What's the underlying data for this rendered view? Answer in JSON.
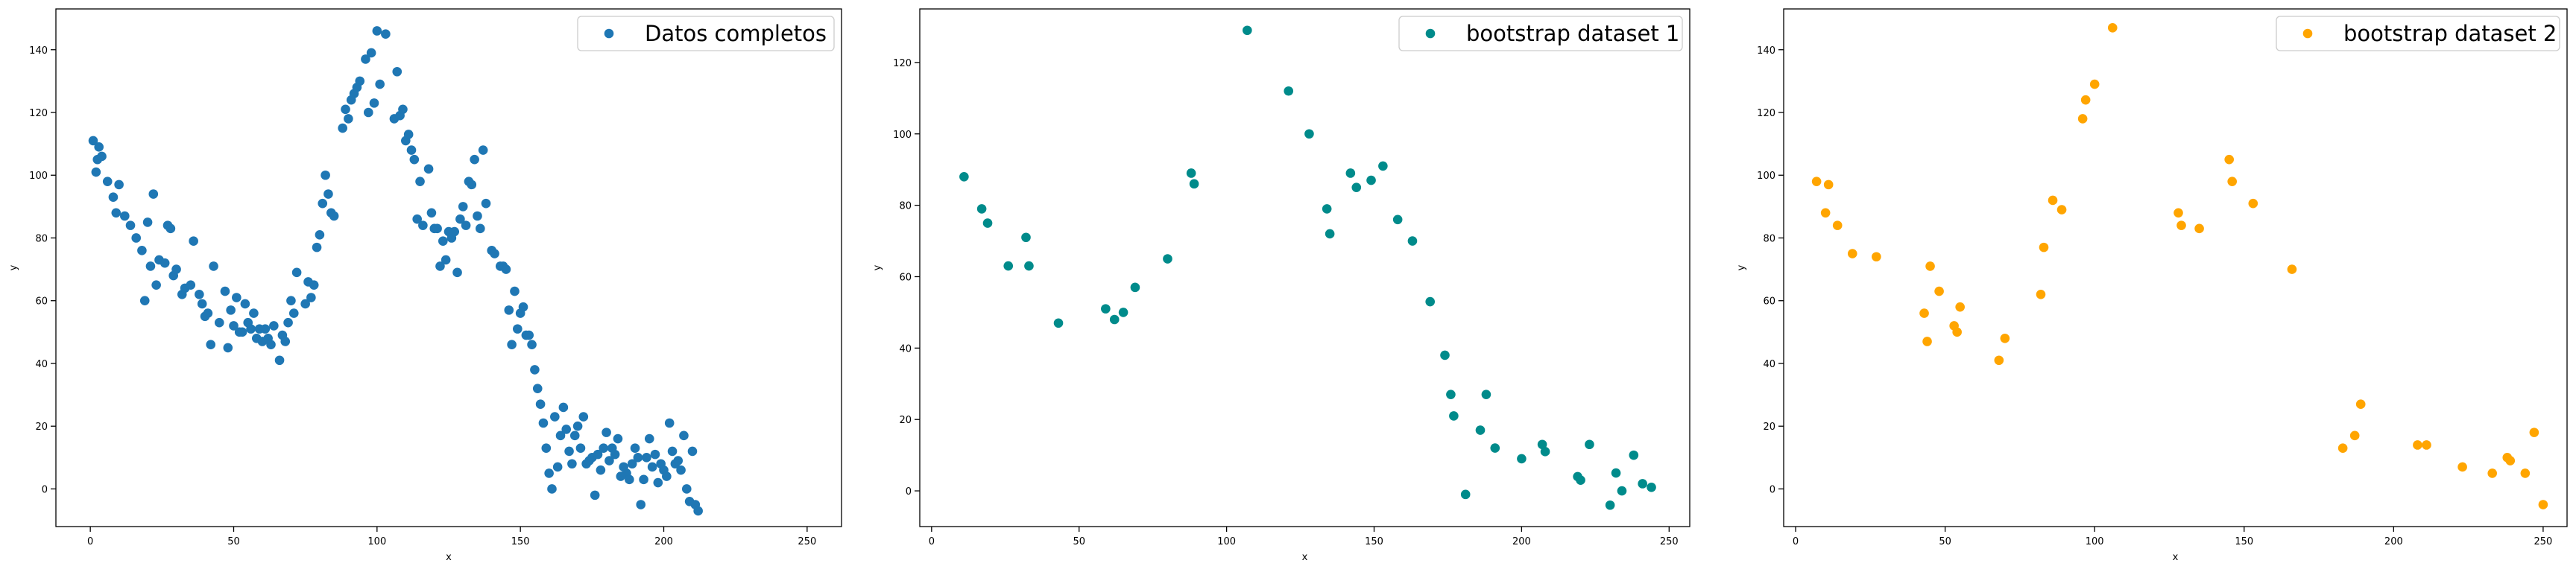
{
  "chart_data": [
    {
      "type": "scatter",
      "xlabel": "x",
      "ylabel": "y",
      "xlim": [
        -12,
        262
      ],
      "ylim": [
        -12,
        153
      ],
      "x_ticks": [
        0,
        50,
        100,
        150,
        200,
        250
      ],
      "y_ticks": [
        0,
        20,
        40,
        60,
        80,
        100,
        120,
        140
      ],
      "legend_position": "top-right",
      "series": [
        {
          "name": "Datos completos",
          "color": "#1f77b4",
          "points": [
            [
              1,
              111
            ],
            [
              2,
              101
            ],
            [
              2.5,
              105
            ],
            [
              3,
              109
            ],
            [
              4,
              106
            ],
            [
              6,
              98
            ],
            [
              8,
              93
            ],
            [
              9,
              88
            ],
            [
              10,
              97
            ],
            [
              12,
              87
            ],
            [
              14,
              84
            ],
            [
              16,
              80
            ],
            [
              18,
              76
            ],
            [
              19,
              60
            ],
            [
              20,
              85
            ],
            [
              21,
              71
            ],
            [
              22,
              94
            ],
            [
              23,
              65
            ],
            [
              24,
              73
            ],
            [
              26,
              72
            ],
            [
              27,
              84
            ],
            [
              28,
              83
            ],
            [
              29,
              68
            ],
            [
              30,
              70
            ],
            [
              32,
              62
            ],
            [
              33,
              64
            ],
            [
              35,
              65
            ],
            [
              36,
              79
            ],
            [
              38,
              62
            ],
            [
              39,
              59
            ],
            [
              40,
              55
            ],
            [
              41,
              56
            ],
            [
              42,
              46
            ],
            [
              43,
              71
            ],
            [
              45,
              53
            ],
            [
              47,
              63
            ],
            [
              48,
              45
            ],
            [
              49,
              57
            ],
            [
              50,
              52
            ],
            [
              51,
              61
            ],
            [
              52,
              50
            ],
            [
              53,
              50
            ],
            [
              54,
              59
            ],
            [
              55,
              53
            ],
            [
              56,
              51
            ],
            [
              57,
              56
            ],
            [
              58,
              48
            ],
            [
              59,
              51
            ],
            [
              60,
              47
            ],
            [
              61,
              51
            ],
            [
              62,
              48
            ],
            [
              63,
              46
            ],
            [
              64,
              52
            ],
            [
              66,
              41
            ],
            [
              67,
              49
            ],
            [
              68,
              47
            ],
            [
              69,
              53
            ],
            [
              70,
              60
            ],
            [
              71,
              56
            ],
            [
              72,
              69
            ],
            [
              75,
              59
            ],
            [
              76,
              66
            ],
            [
              77,
              61
            ],
            [
              78,
              65
            ],
            [
              79,
              77
            ],
            [
              80,
              81
            ],
            [
              81,
              91
            ],
            [
              82,
              100
            ],
            [
              83,
              94
            ],
            [
              84,
              88
            ],
            [
              85,
              87
            ],
            [
              88,
              115
            ],
            [
              89,
              121
            ],
            [
              90,
              118
            ],
            [
              91,
              124
            ],
            [
              92,
              126
            ],
            [
              93,
              128
            ],
            [
              94,
              130
            ],
            [
              96,
              137
            ],
            [
              97,
              120
            ],
            [
              98,
              139
            ],
            [
              99,
              123
            ],
            [
              100,
              146
            ],
            [
              101,
              129
            ],
            [
              103,
              145
            ],
            [
              106,
              118
            ],
            [
              107,
              133
            ],
            [
              108,
              119
            ],
            [
              109,
              121
            ],
            [
              110,
              111
            ],
            [
              111,
              113
            ],
            [
              112,
              108
            ],
            [
              113,
              105
            ],
            [
              114,
              86
            ],
            [
              115,
              98
            ],
            [
              116,
              84
            ],
            [
              118,
              102
            ],
            [
              119,
              88
            ],
            [
              120,
              83
            ],
            [
              121,
              83
            ],
            [
              122,
              71
            ],
            [
              123,
              79
            ],
            [
              124,
              73
            ],
            [
              125,
              82
            ],
            [
              126,
              80
            ],
            [
              127,
              82
            ],
            [
              128,
              69
            ],
            [
              129,
              86
            ],
            [
              130,
              90
            ],
            [
              131,
              84
            ],
            [
              132,
              98
            ],
            [
              133,
              97
            ],
            [
              134,
              105
            ],
            [
              135,
              87
            ],
            [
              136,
              83
            ],
            [
              137,
              108
            ],
            [
              138,
              91
            ],
            [
              140,
              76
            ],
            [
              141,
              75
            ],
            [
              143,
              71
            ],
            [
              144,
              71
            ],
            [
              145,
              70
            ],
            [
              146,
              57
            ],
            [
              147,
              46
            ],
            [
              148,
              63
            ],
            [
              149,
              51
            ],
            [
              150,
              56
            ],
            [
              151,
              58
            ],
            [
              152,
              49
            ],
            [
              153,
              49
            ],
            [
              154,
              46
            ],
            [
              155,
              38
            ],
            [
              156,
              32
            ],
            [
              157,
              27
            ],
            [
              158,
              21
            ],
            [
              159,
              13
            ],
            [
              160,
              5
            ],
            [
              161,
              0
            ],
            [
              162,
              23
            ],
            [
              163,
              7
            ],
            [
              164,
              17
            ],
            [
              165,
              26
            ],
            [
              166,
              19
            ],
            [
              167,
              12
            ],
            [
              168,
              8
            ],
            [
              169,
              17
            ],
            [
              170,
              20
            ],
            [
              171,
              13
            ],
            [
              172,
              23
            ],
            [
              173,
              8
            ],
            [
              174,
              9
            ],
            [
              175,
              10
            ],
            [
              176,
              -2
            ],
            [
              177,
              11
            ],
            [
              178,
              6
            ],
            [
              179,
              13
            ],
            [
              180,
              18
            ],
            [
              181,
              9
            ],
            [
              182,
              13
            ],
            [
              183,
              11
            ],
            [
              184,
              16
            ],
            [
              185,
              4
            ],
            [
              186,
              7
            ],
            [
              187,
              5
            ],
            [
              188,
              3
            ],
            [
              189,
              8
            ],
            [
              190,
              13
            ],
            [
              191,
              10
            ],
            [
              192,
              -5
            ],
            [
              193,
              3
            ],
            [
              194,
              10
            ],
            [
              195,
              16
            ],
            [
              196,
              7
            ],
            [
              197,
              11
            ],
            [
              198,
              2
            ],
            [
              199,
              8
            ],
            [
              200,
              6
            ],
            [
              201,
              4
            ],
            [
              202,
              21
            ],
            [
              203,
              12
            ],
            [
              204,
              8
            ],
            [
              205,
              9
            ],
            [
              206,
              6
            ],
            [
              207,
              17
            ],
            [
              208,
              0
            ],
            [
              209,
              -4
            ],
            [
              210,
              12
            ],
            [
              211,
              -5
            ],
            [
              212,
              -7
            ]
          ]
        }
      ]
    },
    {
      "type": "scatter",
      "xlabel": "x",
      "ylabel": "y",
      "xlim": [
        -4,
        257
      ],
      "ylim": [
        -10,
        135
      ],
      "x_ticks": [
        0,
        50,
        100,
        150,
        200,
        250
      ],
      "y_ticks": [
        0,
        20,
        40,
        60,
        80,
        100,
        120
      ],
      "legend_position": "top-right",
      "series": [
        {
          "name": "bootstrap dataset 1",
          "color": "#008b8b",
          "points": [
            [
              11,
              88
            ],
            [
              17,
              79
            ],
            [
              19,
              75
            ],
            [
              26,
              63
            ],
            [
              32,
              71
            ],
            [
              33,
              63
            ],
            [
              43,
              47
            ],
            [
              59,
              51
            ],
            [
              62,
              48
            ],
            [
              65,
              50
            ],
            [
              69,
              57
            ],
            [
              80,
              65
            ],
            [
              88,
              89
            ],
            [
              89,
              86
            ],
            [
              107,
              129
            ],
            [
              121,
              112
            ],
            [
              128,
              100
            ],
            [
              134,
              79
            ],
            [
              135,
              72
            ],
            [
              142,
              89
            ],
            [
              144,
              85
            ],
            [
              149,
              87
            ],
            [
              153,
              91
            ],
            [
              158,
              76
            ],
            [
              163,
              70
            ],
            [
              169,
              53
            ],
            [
              174,
              38
            ],
            [
              176,
              27
            ],
            [
              177,
              21
            ],
            [
              181,
              -1
            ],
            [
              186,
              17
            ],
            [
              188,
              27
            ],
            [
              191,
              12
            ],
            [
              200,
              9
            ],
            [
              207,
              13
            ],
            [
              208,
              11
            ],
            [
              219,
              4
            ],
            [
              220,
              3
            ],
            [
              223,
              13
            ],
            [
              230,
              -4
            ],
            [
              232,
              5
            ],
            [
              234,
              0
            ],
            [
              238,
              10
            ],
            [
              241,
              2
            ],
            [
              244,
              1
            ]
          ]
        }
      ]
    },
    {
      "type": "scatter",
      "xlabel": "x",
      "ylabel": "y",
      "xlim": [
        -4,
        258
      ],
      "ylim": [
        -12,
        153
      ],
      "x_ticks": [
        0,
        50,
        100,
        150,
        200,
        250
      ],
      "y_ticks": [
        0,
        20,
        40,
        60,
        80,
        100,
        120,
        140
      ],
      "legend_position": "top-right",
      "series": [
        {
          "name": "bootstrap dataset 2",
          "color": "#ffa500",
          "points": [
            [
              7,
              98
            ],
            [
              10,
              88
            ],
            [
              11,
              97
            ],
            [
              14,
              84
            ],
            [
              19,
              75
            ],
            [
              27,
              74
            ],
            [
              43,
              56
            ],
            [
              44,
              47
            ],
            [
              45,
              71
            ],
            [
              48,
              63
            ],
            [
              53,
              52
            ],
            [
              54,
              50
            ],
            [
              55,
              58
            ],
            [
              68,
              41
            ],
            [
              70,
              48
            ],
            [
              82,
              62
            ],
            [
              83,
              77
            ],
            [
              86,
              92
            ],
            [
              89,
              89
            ],
            [
              96,
              118
            ],
            [
              97,
              124
            ],
            [
              100,
              129
            ],
            [
              106,
              147
            ],
            [
              128,
              88
            ],
            [
              129,
              84
            ],
            [
              135,
              83
            ],
            [
              145,
              105
            ],
            [
              146,
              98
            ],
            [
              153,
              91
            ],
            [
              166,
              70
            ],
            [
              183,
              13
            ],
            [
              187,
              17
            ],
            [
              189,
              27
            ],
            [
              208,
              14
            ],
            [
              211,
              14
            ],
            [
              223,
              7
            ],
            [
              233,
              5
            ],
            [
              238,
              10
            ],
            [
              239,
              9
            ],
            [
              244,
              5
            ],
            [
              247,
              18
            ],
            [
              250,
              -5
            ]
          ]
        }
      ]
    }
  ]
}
